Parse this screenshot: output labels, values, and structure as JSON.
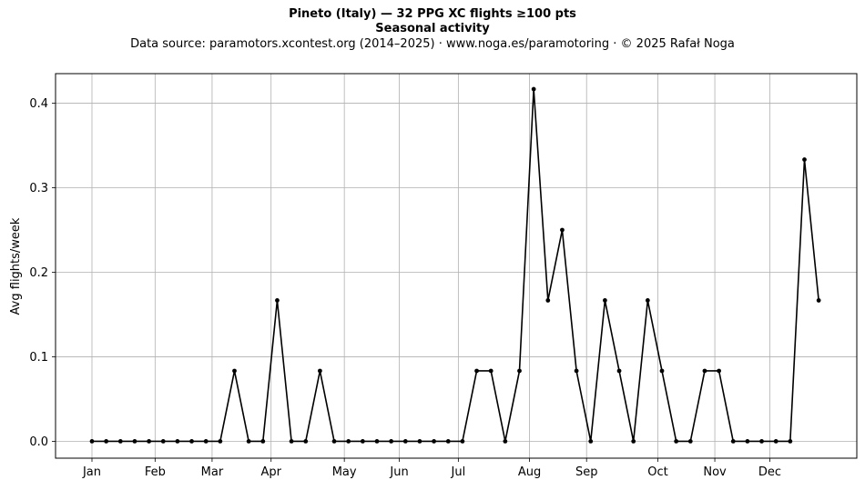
{
  "chart_data": {
    "type": "line",
    "title": "Pineto (Italy)  —  32 PPG XC flights ≥100 pts",
    "subtitle": "Seasonal activity",
    "source_note": "Data source: paramotors.xcontest.org (2014–2025)  ·  www.noga.es/paramotoring  ·  © 2025 Rafał Noga",
    "xlabel": "",
    "ylabel": "Avg flights/week",
    "x_ticks": [
      "Jan",
      "Feb",
      "Mar",
      "Apr",
      "May",
      "Jun",
      "Jul",
      "Aug",
      "Sep",
      "Oct",
      "Nov",
      "Dec"
    ],
    "y_ticks": [
      "0.0",
      "0.1",
      "0.2",
      "0.3",
      "0.4"
    ],
    "ylim": [
      -0.02,
      0.435
    ],
    "grid": true,
    "series_color": "#000000",
    "week_of_year": [
      1,
      2,
      3,
      4,
      5,
      6,
      7,
      8,
      9,
      10,
      11,
      12,
      13,
      14,
      15,
      16,
      17,
      18,
      19,
      20,
      21,
      22,
      23,
      24,
      25,
      26,
      27,
      28,
      29,
      30,
      31,
      32,
      33,
      34,
      35,
      36,
      37,
      38,
      39,
      40,
      41,
      42,
      43,
      44,
      45,
      46,
      47,
      48,
      49,
      50,
      51,
      52
    ],
    "values": [
      0,
      0,
      0,
      0,
      0,
      0,
      0,
      0,
      0,
      0,
      0.0833,
      0,
      0,
      0.1667,
      0,
      0,
      0.0833,
      0,
      0,
      0,
      0,
      0,
      0,
      0,
      0,
      0,
      0,
      0.0833,
      0.0833,
      0,
      0.0833,
      0.4167,
      0.1667,
      0.25,
      0.0833,
      0,
      0.1667,
      0.0833,
      0,
      0.1667,
      0.0833,
      0,
      0,
      0.0833,
      0.0833,
      0,
      0,
      0,
      0,
      0,
      0.3333,
      0.1667
    ]
  }
}
